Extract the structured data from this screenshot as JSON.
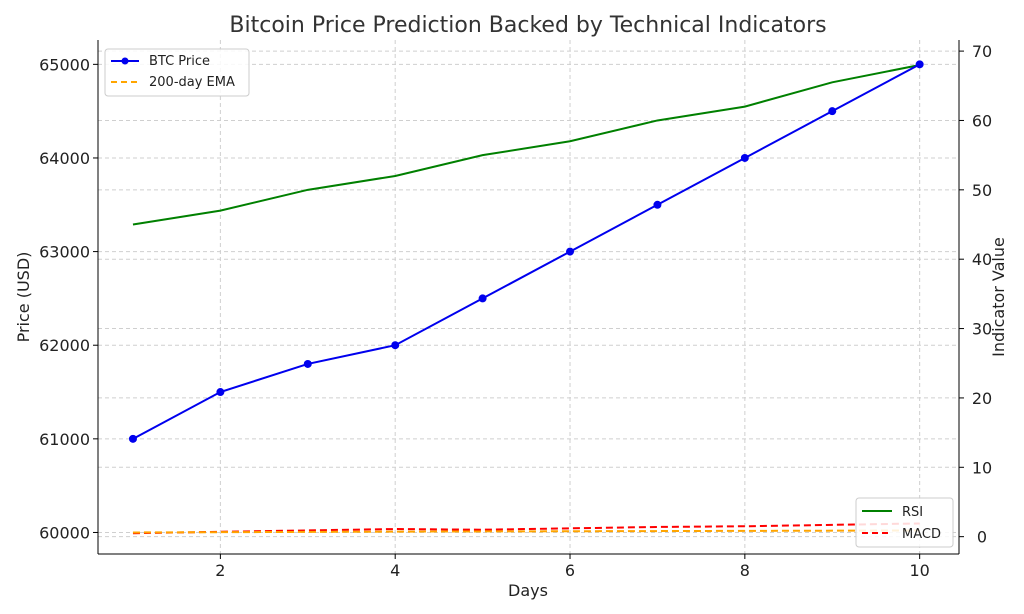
{
  "chart_data": {
    "type": "line",
    "title": "Bitcoin Price Prediction Backed by Technical Indicators",
    "xlabel": "Days",
    "ylabel_left": "Price (USD)",
    "ylabel_right": "Indicator Value",
    "x": [
      1,
      2,
      3,
      4,
      5,
      6,
      7,
      8,
      9,
      10
    ],
    "xticks": [
      2,
      4,
      6,
      8,
      10
    ],
    "xlim": [
      0.6,
      10.45
    ],
    "ylim_left": [
      59770,
      65260
    ],
    "yticks_left": [
      60000,
      61000,
      62000,
      63000,
      64000,
      65000
    ],
    "ylim_right": [
      -2.5,
      71.6
    ],
    "yticks_right": [
      0,
      10,
      20,
      30,
      40,
      50,
      60,
      70
    ],
    "grid": true,
    "left_series": [
      {
        "name": "BTC Price",
        "color": "#0000ee",
        "style": "solid",
        "markers": true,
        "values": [
          61000,
          61500,
          61800,
          62000,
          62500,
          63000,
          63500,
          64000,
          64500,
          65000
        ]
      },
      {
        "name": "200-day EMA",
        "color": "#ffa500",
        "style": "dashed",
        "markers": false,
        "values": [
          60000,
          60003,
          60006,
          60009,
          60011,
          60013,
          60015,
          60017,
          60019,
          60022
        ]
      }
    ],
    "right_series": [
      {
        "name": "RSI",
        "color": "#008000",
        "style": "solid",
        "markers": false,
        "values": [
          45,
          47,
          50,
          52,
          55,
          57,
          60,
          62,
          65.5,
          68
        ]
      },
      {
        "name": "MACD",
        "color": "#ff0000",
        "style": "dashed",
        "markers": false,
        "values": [
          0.5,
          0.7,
          0.9,
          1.1,
          1.0,
          1.2,
          1.4,
          1.5,
          1.7,
          1.9
        ]
      }
    ],
    "legend_left_placement": "top-left",
    "legend_right_placement": "bottom-right"
  }
}
